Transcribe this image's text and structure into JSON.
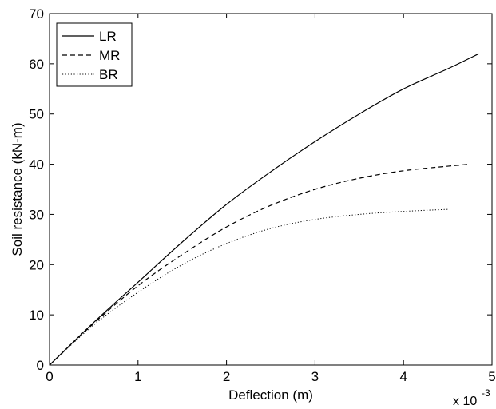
{
  "chart_data": {
    "type": "line",
    "title": "",
    "xlabel": "Deflection (m)",
    "ylabel": "Soil resistance (kN-m)",
    "x_scale_label": "x 10",
    "x_scale_exponent": "-3",
    "xlim": [
      0,
      5
    ],
    "ylim": [
      0,
      70
    ],
    "x_ticks": [
      "0",
      "1",
      "2",
      "3",
      "4",
      "5"
    ],
    "y_ticks": [
      "0",
      "10",
      "20",
      "30",
      "40",
      "50",
      "60",
      "70"
    ],
    "grid": false,
    "legend_position": "top-left",
    "series": [
      {
        "name": "LR",
        "line_style": "solid",
        "x": [
          0,
          0.5,
          1.0,
          1.5,
          2.0,
          2.5,
          3.0,
          3.5,
          4.0,
          4.5,
          4.85
        ],
        "y": [
          0,
          8.5,
          16.5,
          24.5,
          32.0,
          38.5,
          44.5,
          50.0,
          55.0,
          59.0,
          62.0
        ]
      },
      {
        "name": "MR",
        "line_style": "dashed",
        "x": [
          0,
          0.5,
          1.0,
          1.5,
          2.0,
          2.5,
          3.0,
          3.5,
          4.0,
          4.5,
          4.75
        ],
        "y": [
          0,
          8.3,
          15.8,
          22.0,
          27.5,
          31.8,
          35.0,
          37.2,
          38.7,
          39.6,
          40.0
        ]
      },
      {
        "name": "BR",
        "line_style": "dotted",
        "x": [
          0,
          0.5,
          1.0,
          1.5,
          2.0,
          2.5,
          3.0,
          3.5,
          4.0,
          4.5
        ],
        "y": [
          0,
          8.0,
          14.5,
          20.0,
          24.2,
          27.2,
          29.0,
          30.0,
          30.6,
          31.0
        ]
      }
    ]
  }
}
